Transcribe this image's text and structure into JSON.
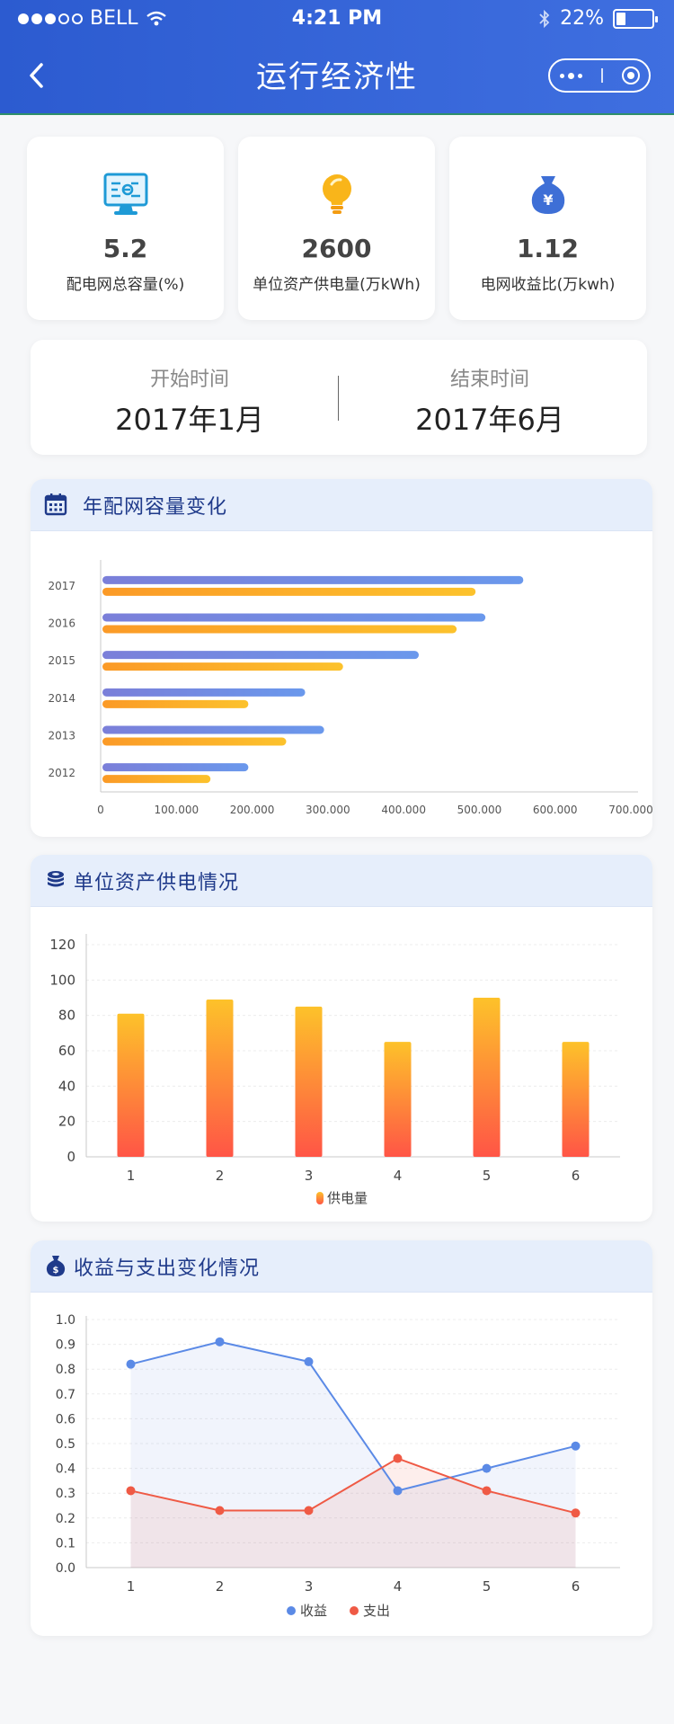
{
  "status_bar": {
    "carrier": "BELL",
    "time": "4:21 PM",
    "battery": "22%"
  },
  "header": {
    "title": "运行经济性"
  },
  "stats": [
    {
      "icon": "monitor-icon",
      "value": "5.2",
      "label": "配电网总容量(%)"
    },
    {
      "icon": "lightbulb-icon",
      "value": "2600",
      "label": "单位资产供电量(万kWh)"
    },
    {
      "icon": "money-bag-icon",
      "value": "1.12",
      "label": "电网收益比(万kwh)"
    }
  ],
  "time_range": {
    "start_label": "开始时间",
    "start_value": "2017年1月",
    "end_label": "结束时间",
    "end_value": "2017年6月"
  },
  "panels": {
    "capacity": {
      "title": "年配网容量变化",
      "icon": "calendar-icon"
    },
    "supply": {
      "title": "单位资产供电情况",
      "icon": "coins-icon"
    },
    "income": {
      "title": "收益与支出变化情况",
      "icon": "money-bag-icon"
    }
  },
  "colors": {
    "header": "#3263d6",
    "series_blue": "#6f8ce8",
    "series_orange": "#f9a825",
    "bar_top": "#fdc22a",
    "bar_bottom": "#ff5546",
    "line_income": "#5b8ae6",
    "line_expense": "#ef5a45"
  },
  "chart_data": [
    {
      "type": "bar",
      "orientation": "horizontal",
      "categories": [
        "2012",
        "2013",
        "2014",
        "2015",
        "2016",
        "2017"
      ],
      "series": [
        {
          "values": [
            195000,
            295000,
            270000,
            420000,
            508000,
            558000
          ]
        },
        {
          "values": [
            145000,
            245000,
            195000,
            320000,
            470000,
            495000
          ]
        }
      ],
      "xticks": [
        "0",
        "100.000",
        "200.000",
        "300.000",
        "400.000",
        "500.000",
        "600.000",
        "700.000"
      ],
      "xlim": [
        0,
        700000
      ]
    },
    {
      "type": "bar",
      "categories": [
        "1",
        "2",
        "3",
        "4",
        "5",
        "6"
      ],
      "series": [
        {
          "name": "供电量",
          "values": [
            81,
            89,
            85,
            65,
            90,
            65
          ]
        }
      ],
      "yticks": [
        "0",
        "20",
        "40",
        "60",
        "80",
        "100",
        "120"
      ],
      "ylim": [
        0,
        120
      ],
      "legend": "bottom"
    },
    {
      "type": "line",
      "categories": [
        "1",
        "2",
        "3",
        "4",
        "5",
        "6"
      ],
      "series": [
        {
          "name": "收益",
          "values": [
            0.82,
            0.91,
            0.83,
            0.31,
            0.4,
            0.49
          ]
        },
        {
          "name": "支出",
          "values": [
            0.31,
            0.23,
            0.23,
            0.44,
            0.31,
            0.22
          ]
        }
      ],
      "yticks": [
        "0.0",
        "0.1",
        "0.2",
        "0.3",
        "0.4",
        "0.5",
        "0.6",
        "0.7",
        "0.8",
        "0.9",
        "1.0"
      ],
      "ylim": [
        0,
        1.0
      ],
      "legend": "bottom"
    }
  ]
}
